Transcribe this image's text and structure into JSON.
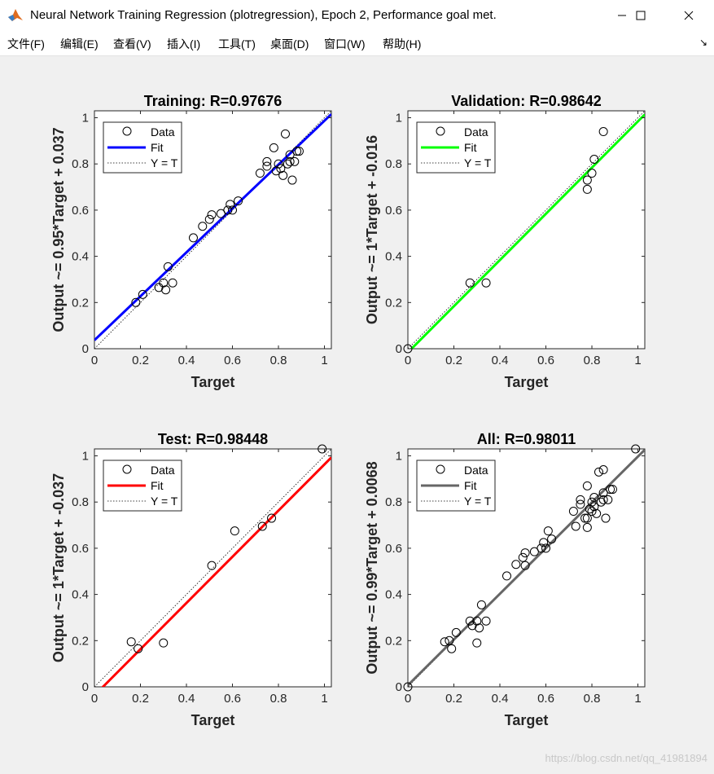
{
  "window": {
    "title": "Neural Network Training Regression (plotregression), Epoch 2, Performance goal met.",
    "minimize_glyph": "—",
    "maximize_glyph": "☐",
    "close_glyph": "✕"
  },
  "menu": {
    "items": [
      "文件(F)",
      "编辑(E)",
      "查看(V)",
      "插入(I)",
      "工具(T)",
      "桌面(D)",
      "窗口(W)",
      "帮助(H)"
    ],
    "overflow_glyph": "↘"
  },
  "watermark": "https://blog.csdn.net/qq_41981894",
  "chart_data": [
    {
      "type": "scatter",
      "title": "Training: R=0.97676",
      "xlabel": "Target",
      "ylabel": "Output ~= 0.95*Target + 0.037",
      "xlim": [
        0,
        1.03
      ],
      "ylim": [
        0,
        1.03
      ],
      "xticks": [
        0,
        0.2,
        0.4,
        0.6,
        0.8,
        1
      ],
      "yticks": [
        0,
        0.2,
        0.4,
        0.6,
        0.8,
        1
      ],
      "fit": {
        "slope": 0.95,
        "intercept": 0.037,
        "color": "#0000ff"
      },
      "legend": {
        "placement": "top-left",
        "entries": [
          "Data",
          "Fit",
          "Y = T"
        ]
      },
      "grid": false,
      "points": [
        [
          0.18,
          0.2
        ],
        [
          0.21,
          0.235
        ],
        [
          0.28,
          0.265
        ],
        [
          0.3,
          0.285
        ],
        [
          0.31,
          0.255
        ],
        [
          0.32,
          0.355
        ],
        [
          0.34,
          0.285
        ],
        [
          0.43,
          0.48
        ],
        [
          0.47,
          0.53
        ],
        [
          0.5,
          0.56
        ],
        [
          0.51,
          0.58
        ],
        [
          0.55,
          0.585
        ],
        [
          0.58,
          0.6
        ],
        [
          0.59,
          0.625
        ],
        [
          0.6,
          0.6
        ],
        [
          0.625,
          0.64
        ],
        [
          0.72,
          0.76
        ],
        [
          0.75,
          0.79
        ],
        [
          0.75,
          0.81
        ],
        [
          0.78,
          0.87
        ],
        [
          0.79,
          0.77
        ],
        [
          0.8,
          0.8
        ],
        [
          0.81,
          0.78
        ],
        [
          0.82,
          0.75
        ],
        [
          0.83,
          0.93
        ],
        [
          0.84,
          0.8
        ],
        [
          0.85,
          0.81
        ],
        [
          0.85,
          0.84
        ],
        [
          0.86,
          0.73
        ],
        [
          0.87,
          0.81
        ],
        [
          0.88,
          0.855
        ],
        [
          0.89,
          0.855
        ]
      ]
    },
    {
      "type": "scatter",
      "title": "Validation: R=0.98642",
      "xlabel": "Target",
      "ylabel": "Output ~= 1*Target + -0.016",
      "xlim": [
        0,
        1.03
      ],
      "ylim": [
        0,
        1.03
      ],
      "xticks": [
        0,
        0.2,
        0.4,
        0.6,
        0.8,
        1
      ],
      "yticks": [
        0,
        0.2,
        0.4,
        0.6,
        0.8,
        1
      ],
      "fit": {
        "slope": 1.0,
        "intercept": -0.016,
        "color": "#00ff00"
      },
      "legend": {
        "placement": "top-left",
        "entries": [
          "Data",
          "Fit",
          "Y = T"
        ]
      },
      "grid": false,
      "points": [
        [
          0.0,
          0.0
        ],
        [
          0.27,
          0.285
        ],
        [
          0.34,
          0.285
        ],
        [
          0.78,
          0.69
        ],
        [
          0.78,
          0.73
        ],
        [
          0.8,
          0.76
        ],
        [
          0.81,
          0.82
        ],
        [
          0.85,
          0.94
        ]
      ]
    },
    {
      "type": "scatter",
      "title": "Test: R=0.98448",
      "xlabel": "Target",
      "ylabel": "Output ~= 1*Target + -0.037",
      "xlim": [
        0,
        1.03
      ],
      "ylim": [
        0,
        1.03
      ],
      "xticks": [
        0,
        0.2,
        0.4,
        0.6,
        0.8,
        1
      ],
      "yticks": [
        0,
        0.2,
        0.4,
        0.6,
        0.8,
        1
      ],
      "fit": {
        "slope": 1.0,
        "intercept": -0.037,
        "color": "#ff0000"
      },
      "legend": {
        "placement": "top-left",
        "entries": [
          "Data",
          "Fit",
          "Y = T"
        ]
      },
      "grid": false,
      "points": [
        [
          0.16,
          0.195
        ],
        [
          0.19,
          0.165
        ],
        [
          0.3,
          0.19
        ],
        [
          0.51,
          0.525
        ],
        [
          0.61,
          0.675
        ],
        [
          0.73,
          0.695
        ],
        [
          0.77,
          0.73
        ],
        [
          0.99,
          1.03
        ]
      ]
    },
    {
      "type": "scatter",
      "title": "All: R=0.98011",
      "xlabel": "Target",
      "ylabel": "Output ~= 0.99*Target + 0.0068",
      "xlim": [
        0,
        1.03
      ],
      "ylim": [
        0,
        1.03
      ],
      "xticks": [
        0,
        0.2,
        0.4,
        0.6,
        0.8,
        1
      ],
      "yticks": [
        0,
        0.2,
        0.4,
        0.6,
        0.8,
        1
      ],
      "fit": {
        "slope": 0.99,
        "intercept": 0.0068,
        "color": "#666666"
      },
      "legend": {
        "placement": "top-left",
        "entries": [
          "Data",
          "Fit",
          "Y = T"
        ]
      },
      "grid": false,
      "points": [
        [
          0.0,
          0.0
        ],
        [
          0.16,
          0.195
        ],
        [
          0.18,
          0.2
        ],
        [
          0.19,
          0.165
        ],
        [
          0.21,
          0.235
        ],
        [
          0.27,
          0.285
        ],
        [
          0.28,
          0.265
        ],
        [
          0.3,
          0.285
        ],
        [
          0.3,
          0.19
        ],
        [
          0.31,
          0.255
        ],
        [
          0.32,
          0.355
        ],
        [
          0.34,
          0.285
        ],
        [
          0.43,
          0.48
        ],
        [
          0.47,
          0.53
        ],
        [
          0.5,
          0.56
        ],
        [
          0.51,
          0.58
        ],
        [
          0.51,
          0.525
        ],
        [
          0.55,
          0.585
        ],
        [
          0.58,
          0.6
        ],
        [
          0.59,
          0.625
        ],
        [
          0.6,
          0.6
        ],
        [
          0.61,
          0.675
        ],
        [
          0.625,
          0.64
        ],
        [
          0.72,
          0.76
        ],
        [
          0.73,
          0.695
        ],
        [
          0.75,
          0.79
        ],
        [
          0.75,
          0.81
        ],
        [
          0.77,
          0.73
        ],
        [
          0.78,
          0.87
        ],
        [
          0.78,
          0.69
        ],
        [
          0.78,
          0.73
        ],
        [
          0.79,
          0.77
        ],
        [
          0.8,
          0.8
        ],
        [
          0.8,
          0.76
        ],
        [
          0.81,
          0.78
        ],
        [
          0.81,
          0.82
        ],
        [
          0.82,
          0.75
        ],
        [
          0.83,
          0.93
        ],
        [
          0.84,
          0.8
        ],
        [
          0.85,
          0.81
        ],
        [
          0.85,
          0.84
        ],
        [
          0.85,
          0.94
        ],
        [
          0.86,
          0.73
        ],
        [
          0.87,
          0.81
        ],
        [
          0.88,
          0.855
        ],
        [
          0.89,
          0.855
        ],
        [
          0.99,
          1.03
        ]
      ]
    }
  ]
}
